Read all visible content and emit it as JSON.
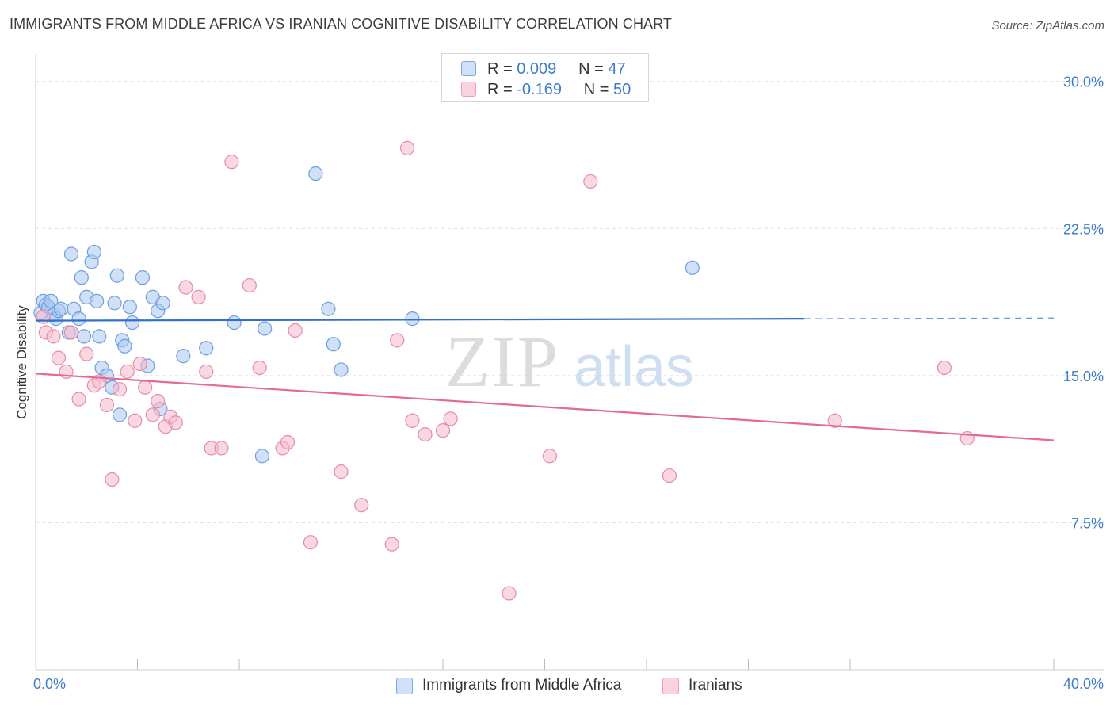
{
  "header": {
    "title": "IMMIGRANTS FROM MIDDLE AFRICA VS IRANIAN COGNITIVE DISABILITY CORRELATION CHART",
    "source": "Source: ZipAtlas.com"
  },
  "watermark": {
    "zip": "ZIP",
    "atlas": "atlas"
  },
  "legend_top": [
    {
      "r_label": "R =",
      "r_value": "0.009",
      "n_label": "N =",
      "n_value": "47",
      "color": "#a9c8f0"
    },
    {
      "r_label": "R =",
      "r_value": "-0.169",
      "n_label": "N =",
      "n_value": "50",
      "color": "#f5b8cb"
    }
  ],
  "colors": {
    "blue_fill": "#a9c8f0",
    "blue_stroke": "#6d9fe0",
    "blue_line": "#2f6fd0",
    "pink_fill": "#f5b8cb",
    "pink_stroke": "#e88aaa",
    "pink_line": "#e46a95",
    "axis_text": "#3f7ccc",
    "grid": "#dddddd"
  },
  "chart_data": {
    "type": "scatter",
    "xlabel": "",
    "ylabel": "Cognitive Disability",
    "xlim": [
      0,
      40
    ],
    "ylim": [
      0,
      31
    ],
    "x_tick_labels": [
      {
        "value": 0,
        "label": "0.0%"
      },
      {
        "value": 40,
        "label": "40.0%"
      }
    ],
    "y_tick_labels": [
      {
        "value": 7.5,
        "label": "7.5%"
      },
      {
        "value": 15.0,
        "label": "15.0%"
      },
      {
        "value": 22.5,
        "label": "22.5%"
      },
      {
        "value": 30.0,
        "label": "30.0%"
      }
    ],
    "grid": true,
    "legend_position": "bottom-center",
    "series": [
      {
        "name": "Immigrants from Middle Africa",
        "color": "#a9c8f0",
        "trend": {
          "x": [
            0,
            30.2
          ],
          "y": [
            17.8,
            17.9
          ],
          "dashed_to": 40
        },
        "points": [
          [
            0.2,
            18.2
          ],
          [
            0.3,
            18.8
          ],
          [
            0.4,
            18.6
          ],
          [
            0.5,
            18.5
          ],
          [
            0.6,
            18.8
          ],
          [
            0.7,
            18.1
          ],
          [
            0.8,
            17.9
          ],
          [
            0.9,
            18.3
          ],
          [
            1.0,
            18.4
          ],
          [
            1.3,
            17.2
          ],
          [
            1.4,
            21.2
          ],
          [
            1.5,
            18.4
          ],
          [
            1.7,
            17.9
          ],
          [
            1.8,
            20.0
          ],
          [
            1.9,
            17.0
          ],
          [
            2.0,
            19.0
          ],
          [
            2.2,
            20.8
          ],
          [
            2.3,
            21.3
          ],
          [
            2.4,
            18.8
          ],
          [
            2.5,
            17.0
          ],
          [
            2.6,
            15.4
          ],
          [
            2.8,
            15.0
          ],
          [
            3.0,
            14.4
          ],
          [
            3.1,
            18.7
          ],
          [
            3.2,
            20.1
          ],
          [
            3.3,
            13.0
          ],
          [
            3.4,
            16.8
          ],
          [
            3.5,
            16.5
          ],
          [
            3.7,
            18.5
          ],
          [
            3.8,
            17.7
          ],
          [
            4.2,
            20.0
          ],
          [
            4.4,
            15.5
          ],
          [
            4.6,
            19.0
          ],
          [
            4.8,
            18.3
          ],
          [
            4.9,
            13.3
          ],
          [
            5.0,
            18.7
          ],
          [
            5.8,
            16.0
          ],
          [
            6.7,
            16.4
          ],
          [
            7.8,
            17.7
          ],
          [
            8.9,
            10.9
          ],
          [
            9.0,
            17.4
          ],
          [
            11.0,
            25.3
          ],
          [
            11.5,
            18.4
          ],
          [
            11.7,
            16.6
          ],
          [
            12.0,
            15.3
          ],
          [
            14.8,
            17.9
          ],
          [
            25.8,
            20.5
          ]
        ]
      },
      {
        "name": "Iranians",
        "color": "#f5b8cb",
        "trend": {
          "x": [
            0,
            40
          ],
          "y": [
            15.1,
            11.7
          ]
        },
        "points": [
          [
            0.3,
            18.0
          ],
          [
            0.4,
            17.2
          ],
          [
            0.7,
            17.0
          ],
          [
            0.9,
            15.9
          ],
          [
            1.2,
            15.2
          ],
          [
            1.4,
            17.2
          ],
          [
            1.7,
            13.8
          ],
          [
            2.0,
            16.1
          ],
          [
            2.3,
            14.5
          ],
          [
            2.5,
            14.7
          ],
          [
            2.8,
            13.5
          ],
          [
            3.0,
            9.7
          ],
          [
            3.3,
            14.3
          ],
          [
            3.6,
            15.2
          ],
          [
            3.9,
            12.7
          ],
          [
            4.1,
            15.6
          ],
          [
            4.3,
            14.4
          ],
          [
            4.6,
            13.0
          ],
          [
            4.8,
            13.7
          ],
          [
            5.1,
            12.4
          ],
          [
            5.3,
            12.9
          ],
          [
            5.5,
            12.6
          ],
          [
            5.9,
            19.5
          ],
          [
            6.4,
            19.0
          ],
          [
            6.7,
            15.2
          ],
          [
            6.9,
            11.3
          ],
          [
            7.3,
            11.3
          ],
          [
            7.7,
            25.9
          ],
          [
            8.4,
            19.6
          ],
          [
            8.8,
            15.4
          ],
          [
            9.7,
            11.3
          ],
          [
            9.9,
            11.6
          ],
          [
            10.2,
            17.3
          ],
          [
            10.8,
            6.5
          ],
          [
            12.0,
            10.1
          ],
          [
            12.8,
            8.4
          ],
          [
            14.0,
            6.4
          ],
          [
            14.2,
            16.8
          ],
          [
            14.6,
            26.6
          ],
          [
            14.8,
            12.7
          ],
          [
            15.3,
            12.0
          ],
          [
            16.0,
            12.2
          ],
          [
            16.3,
            12.8
          ],
          [
            18.6,
            3.9
          ],
          [
            20.2,
            10.9
          ],
          [
            21.8,
            24.9
          ],
          [
            24.9,
            9.9
          ],
          [
            31.4,
            12.7
          ],
          [
            35.7,
            15.4
          ],
          [
            36.6,
            11.8
          ]
        ]
      }
    ]
  },
  "legend_bottom": [
    {
      "label": "Immigrants from Middle Africa",
      "color": "#a9c8f0"
    },
    {
      "label": "Iranians",
      "color": "#f5b8cb"
    }
  ]
}
